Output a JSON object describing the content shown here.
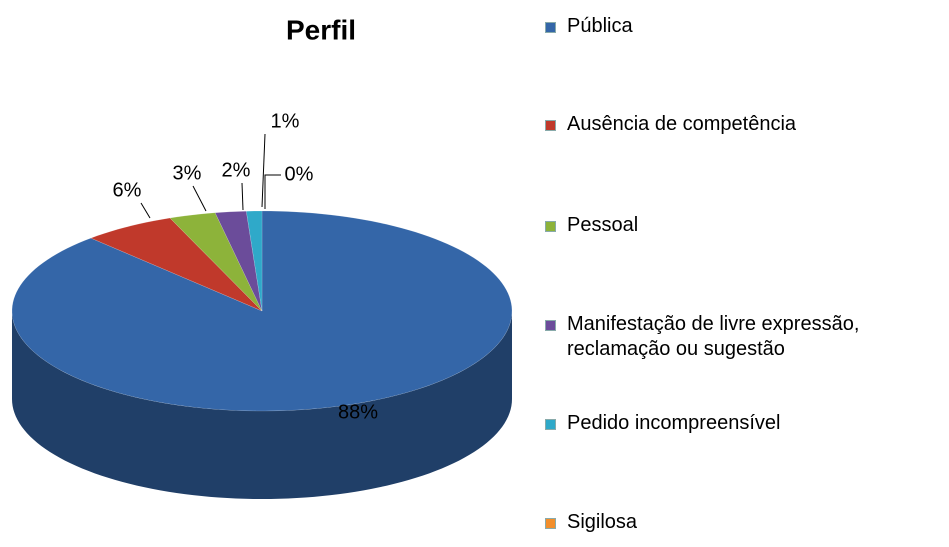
{
  "chart_data": {
    "type": "pie",
    "title": "Perfil",
    "categories": [
      "Pública",
      "Ausência de competência",
      "Pessoal",
      "Manifestação de livre expressão, reclamação ou sugestão",
      "Pedido incompreensível",
      "Sigilosa"
    ],
    "values": [
      88,
      6,
      3,
      2,
      1,
      0
    ],
    "value_labels": [
      "88%",
      "6%",
      "3%",
      "2%",
      "1%",
      "0%"
    ],
    "colors": [
      "#3466a8",
      "#c0392b",
      "#8db33a",
      "#6b4c9a",
      "#2fa9c9",
      "#f28e2b"
    ],
    "legend": "right"
  }
}
